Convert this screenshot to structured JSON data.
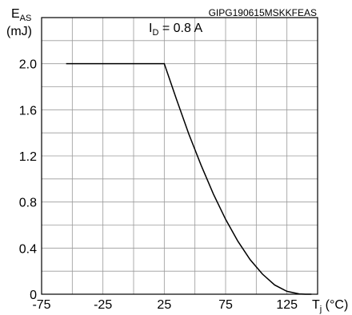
{
  "chart_data": {
    "type": "line",
    "title": "",
    "watermark": "GIPG190615MSKKFEAS",
    "annotation": {
      "main": "I",
      "sub": "D",
      "rest": " = 0.8 A"
    },
    "ylabel": {
      "main": "E",
      "sub": "AS",
      "unit": "(mJ)"
    },
    "xlabel": {
      "main": "T",
      "sub": "j",
      "unit": " (°C)"
    },
    "xlim": [
      -75,
      150
    ],
    "ylim": [
      0,
      2.4
    ],
    "x_ticks": [
      -75,
      -25,
      25,
      75,
      125
    ],
    "y_ticks": [
      0,
      0.4,
      0.8,
      1.2,
      1.6,
      2.0
    ],
    "y_tick_labels": [
      "0",
      "0.4",
      "0.8",
      "1.2",
      "1.6",
      "2.0"
    ],
    "grid": true,
    "series": [
      {
        "color": "#000000",
        "x": [
          -55,
          -40,
          -20,
          0,
          25,
          35,
          45,
          55,
          65,
          75,
          85,
          95,
          105,
          115,
          125,
          135,
          140,
          145
        ],
        "y": [
          2.0,
          2.0,
          2.0,
          2.0,
          2.0,
          1.69,
          1.39,
          1.12,
          0.87,
          0.65,
          0.46,
          0.3,
          0.175,
          0.08,
          0.025,
          0.003,
          0.0,
          0.0
        ]
      }
    ]
  }
}
